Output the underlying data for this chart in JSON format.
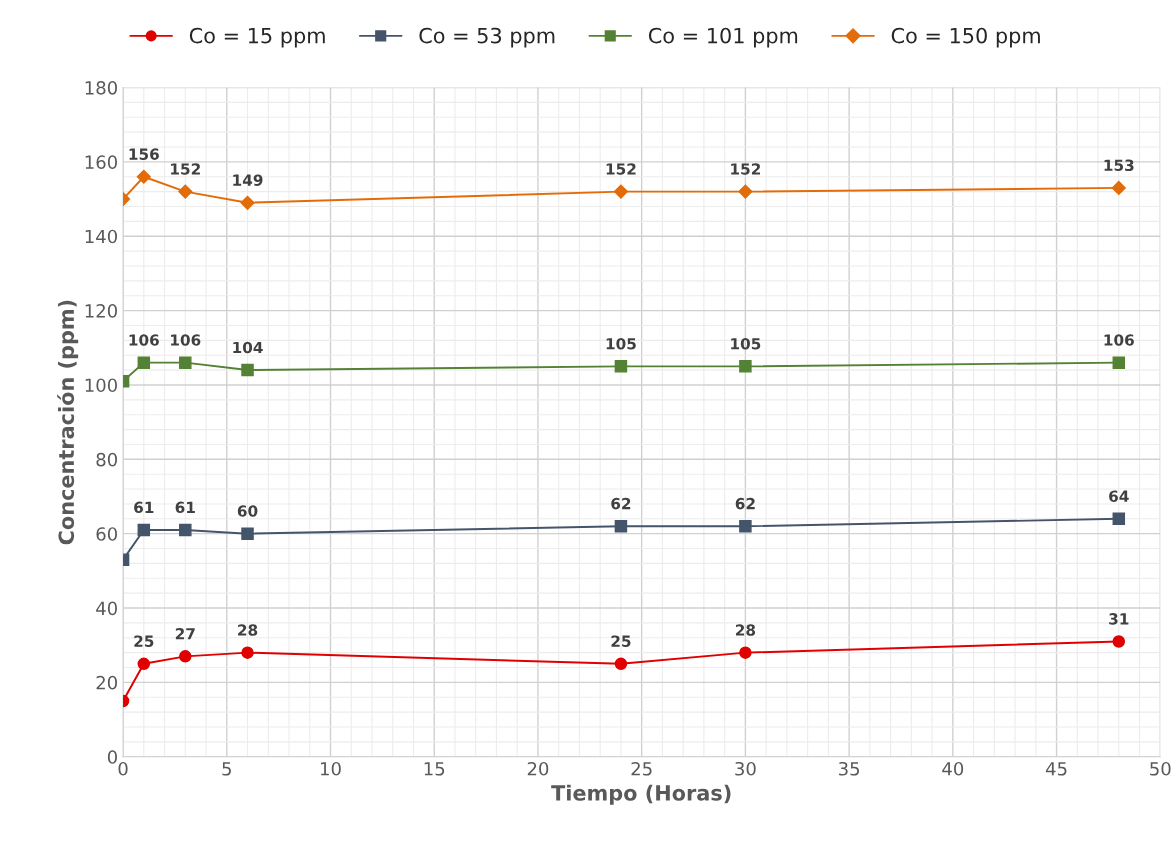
{
  "chart_data": {
    "type": "line",
    "xlabel": "Tiempo (Horas)",
    "ylabel": "Concentración (ppm)",
    "x": [
      0,
      1,
      3,
      6,
      24,
      30,
      48
    ],
    "series": [
      {
        "name": "Co = 15 ppm",
        "color": "#e00000",
        "marker": "circle",
        "values": [
          15,
          25,
          27,
          28,
          25,
          28,
          31
        ],
        "value_labels": [
          null,
          "25",
          "27",
          "28",
          "25",
          "28",
          "31"
        ]
      },
      {
        "name": "Co = 53 ppm",
        "color": "#44546a",
        "marker": "square",
        "values": [
          53,
          61,
          61,
          60,
          62,
          62,
          64
        ],
        "value_labels": [
          null,
          "61",
          "61",
          "60",
          "62",
          "62",
          "64"
        ]
      },
      {
        "name": "Co = 101 ppm",
        "color": "#548235",
        "marker": "square",
        "values": [
          101,
          106,
          106,
          104,
          105,
          105,
          106
        ],
        "value_labels": [
          null,
          "106",
          "106",
          "104",
          "105",
          "105",
          "106"
        ]
      },
      {
        "name": "Co = 150 ppm",
        "color": "#e36c0a",
        "marker": "diamond",
        "values": [
          150,
          156,
          152,
          149,
          152,
          152,
          153
        ],
        "value_labels": [
          null,
          "156",
          "152",
          "149",
          "152",
          "152",
          "153"
        ]
      }
    ],
    "xlim": [
      0,
      50
    ],
    "xticks": [
      0,
      5,
      10,
      15,
      20,
      25,
      30,
      35,
      40,
      45,
      50
    ],
    "ylim": [
      0,
      180
    ],
    "yticks": [
      0,
      20,
      40,
      60,
      80,
      100,
      120,
      140,
      160,
      180
    ],
    "grid": true,
    "legend": "top",
    "line_style": "solid"
  }
}
